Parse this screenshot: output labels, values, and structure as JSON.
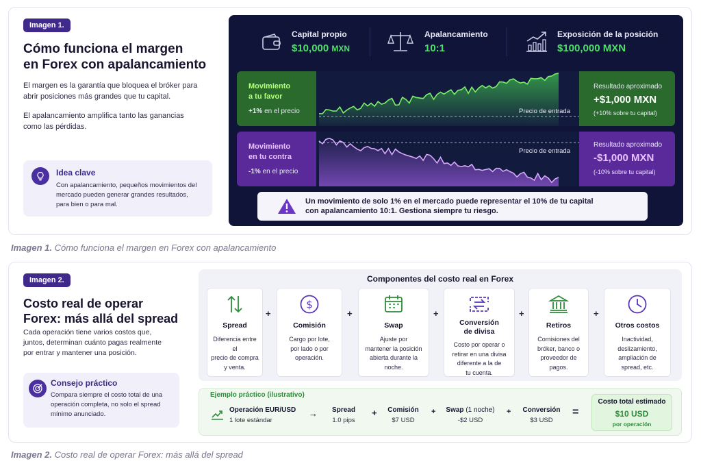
{
  "section1": {
    "badge": "Imagen 1.",
    "title_line1": "Cómo funciona el margen",
    "title_line2": "en Forex con apalancamiento",
    "para1_line1": "El margen es la garantía que bloquea el bróker para",
    "para1_line2": "abrir posiciones más grandes que tu capital.",
    "para2_line1": "El apalancamiento amplifica tanto las ganancias",
    "para2_line2": "como las pérdidas.",
    "tip": {
      "title": "Idea clave",
      "line1": "Con apalancamiento, pequeños movimientos del",
      "line2": "mercado pueden generar grandes resultados,",
      "line3": "para bien o para mal."
    },
    "stats": [
      {
        "label": "Capital propio",
        "value": "$10,000",
        "unit": "MXN",
        "icon": "wallet-icon"
      },
      {
        "label": "Apalancamiento",
        "value": "10:1",
        "icon": "scale-icon"
      },
      {
        "label": "Exposición de la posición",
        "value": "$100,000 MXN",
        "icon": "growth-chart-icon"
      }
    ],
    "favor": {
      "line1": "Movimiento",
      "line2": "a tu favor",
      "change": "+1%",
      "change_suffix": "en el precio",
      "entry_label": "Precio de entrada",
      "result_label": "Resultado aproximado",
      "result_value": "+$1,000 MXN",
      "result_sub": "(+10% sobre tu capital)",
      "color": "#2a6a2c"
    },
    "contra": {
      "line1": "Movimiento",
      "line2": "en tu contra",
      "change": "-1%",
      "change_suffix": "en el precio",
      "entry_label": "Precio de entrada",
      "result_label": "Resultado aproximado",
      "result_value": "-$1,000 MXN",
      "result_sub": "(-10% sobre tu capital)",
      "color": "#5a2a9a"
    },
    "warning_line1": "Un movimiento de solo 1% en el mercado puede representar el 10% de tu capital",
    "warning_line2": "con apalancamiento 10:1. Gestiona siempre tu riesgo.",
    "caption_bold": "Imagen 1.",
    "caption_rest": "Cómo funciona el margen en Forex con apalancamiento"
  },
  "section2": {
    "badge": "Imagen 2.",
    "title_line1": "Costo real de operar",
    "title_line2": "Forex: más allá del spread",
    "para_line1": "Cada operación tiene varios costos que,",
    "para_line2": "juntos, determinan cuánto pagas realmente",
    "para_line3": "por entrar y mantener una posición.",
    "tip": {
      "title": "Consejo práctico",
      "line1": "Compara siempre el costo total de una",
      "line2": "operación completa, no solo el spread",
      "line3": "mínimo anunciado."
    },
    "components_title": "Componentes del costo real en Forex",
    "components": [
      {
        "name": "Spread",
        "desc": [
          "Diferencia entre el",
          "precio de compra",
          "y venta."
        ],
        "icon": "arrows-updown-icon"
      },
      {
        "name": "Comisión",
        "desc": [
          "Cargo por lote,",
          "por lado o por",
          "operación."
        ],
        "icon": "dollar-coin-icon"
      },
      {
        "name": "Swap",
        "desc": [
          "Ajuste por",
          "mantener la posición",
          "abierta durante la",
          "noche."
        ],
        "icon": "calendar-icon"
      },
      {
        "name1": "Conversión",
        "name2": "de divisa",
        "desc": [
          "Costo por operar o",
          "retirar en una divisa",
          "diferente a la de",
          "tu cuenta."
        ],
        "icon": "exchange-icon"
      },
      {
        "name": "Retiros",
        "desc": [
          "Comisiones del",
          "bróker, banco o",
          "proveedor de",
          "pagos."
        ],
        "icon": "bank-icon"
      },
      {
        "name": "Otros costos",
        "desc": [
          "Inactividad,",
          "deslizamiento,",
          "ampliación de",
          "spread, etc."
        ],
        "icon": "clock-icon"
      }
    ],
    "example": {
      "title": "Ejemplo práctico (ilustrativo)",
      "operation_title": "Operación EUR/USD",
      "operation_sub": "1 lote estándar",
      "spread_t": "Spread",
      "spread_s": "1.0 pips",
      "comision_t": "Comisión",
      "comision_s": "$7 USD",
      "swap_t": "Swap",
      "swap_t_paren": "(1 noche)",
      "swap_s": "-$2 USD",
      "conversion_t": "Conversión",
      "conversion_s": "$3 USD",
      "total_t": "Costo total estimado",
      "total_v": "$10 USD",
      "total_s": "por operación"
    },
    "caption_bold": "Imagen 2.",
    "caption_rest": "Costo real de operar Forex: más allá del spread"
  },
  "colors": {
    "accent_purple": "#3f2a8c",
    "dark_panel": "#0f1438",
    "positive_green": "#4ee06a",
    "negative_purple": "#d8a8ff"
  }
}
